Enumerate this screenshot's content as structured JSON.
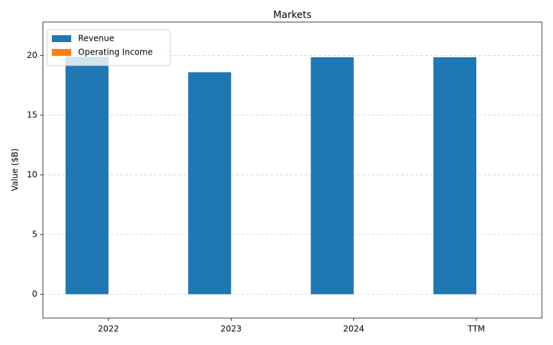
{
  "chart_data": {
    "type": "bar",
    "title": "Markets",
    "y_label": "Value ($B)",
    "categories": [
      "2022",
      "2023",
      "2024",
      "TTM"
    ],
    "series": [
      {
        "name": "Revenue",
        "color": "#1f77b4",
        "values": [
          19.9,
          18.6,
          19.85,
          19.85
        ]
      },
      {
        "name": "Operating Income",
        "color": "#ff7f0e",
        "values": [
          0,
          0,
          0,
          0
        ]
      }
    ],
    "ylim": [
      -2.0,
      22.8
    ],
    "yticks": [
      0,
      5,
      10,
      15,
      20
    ],
    "grid": true,
    "legend": "upper-left"
  }
}
